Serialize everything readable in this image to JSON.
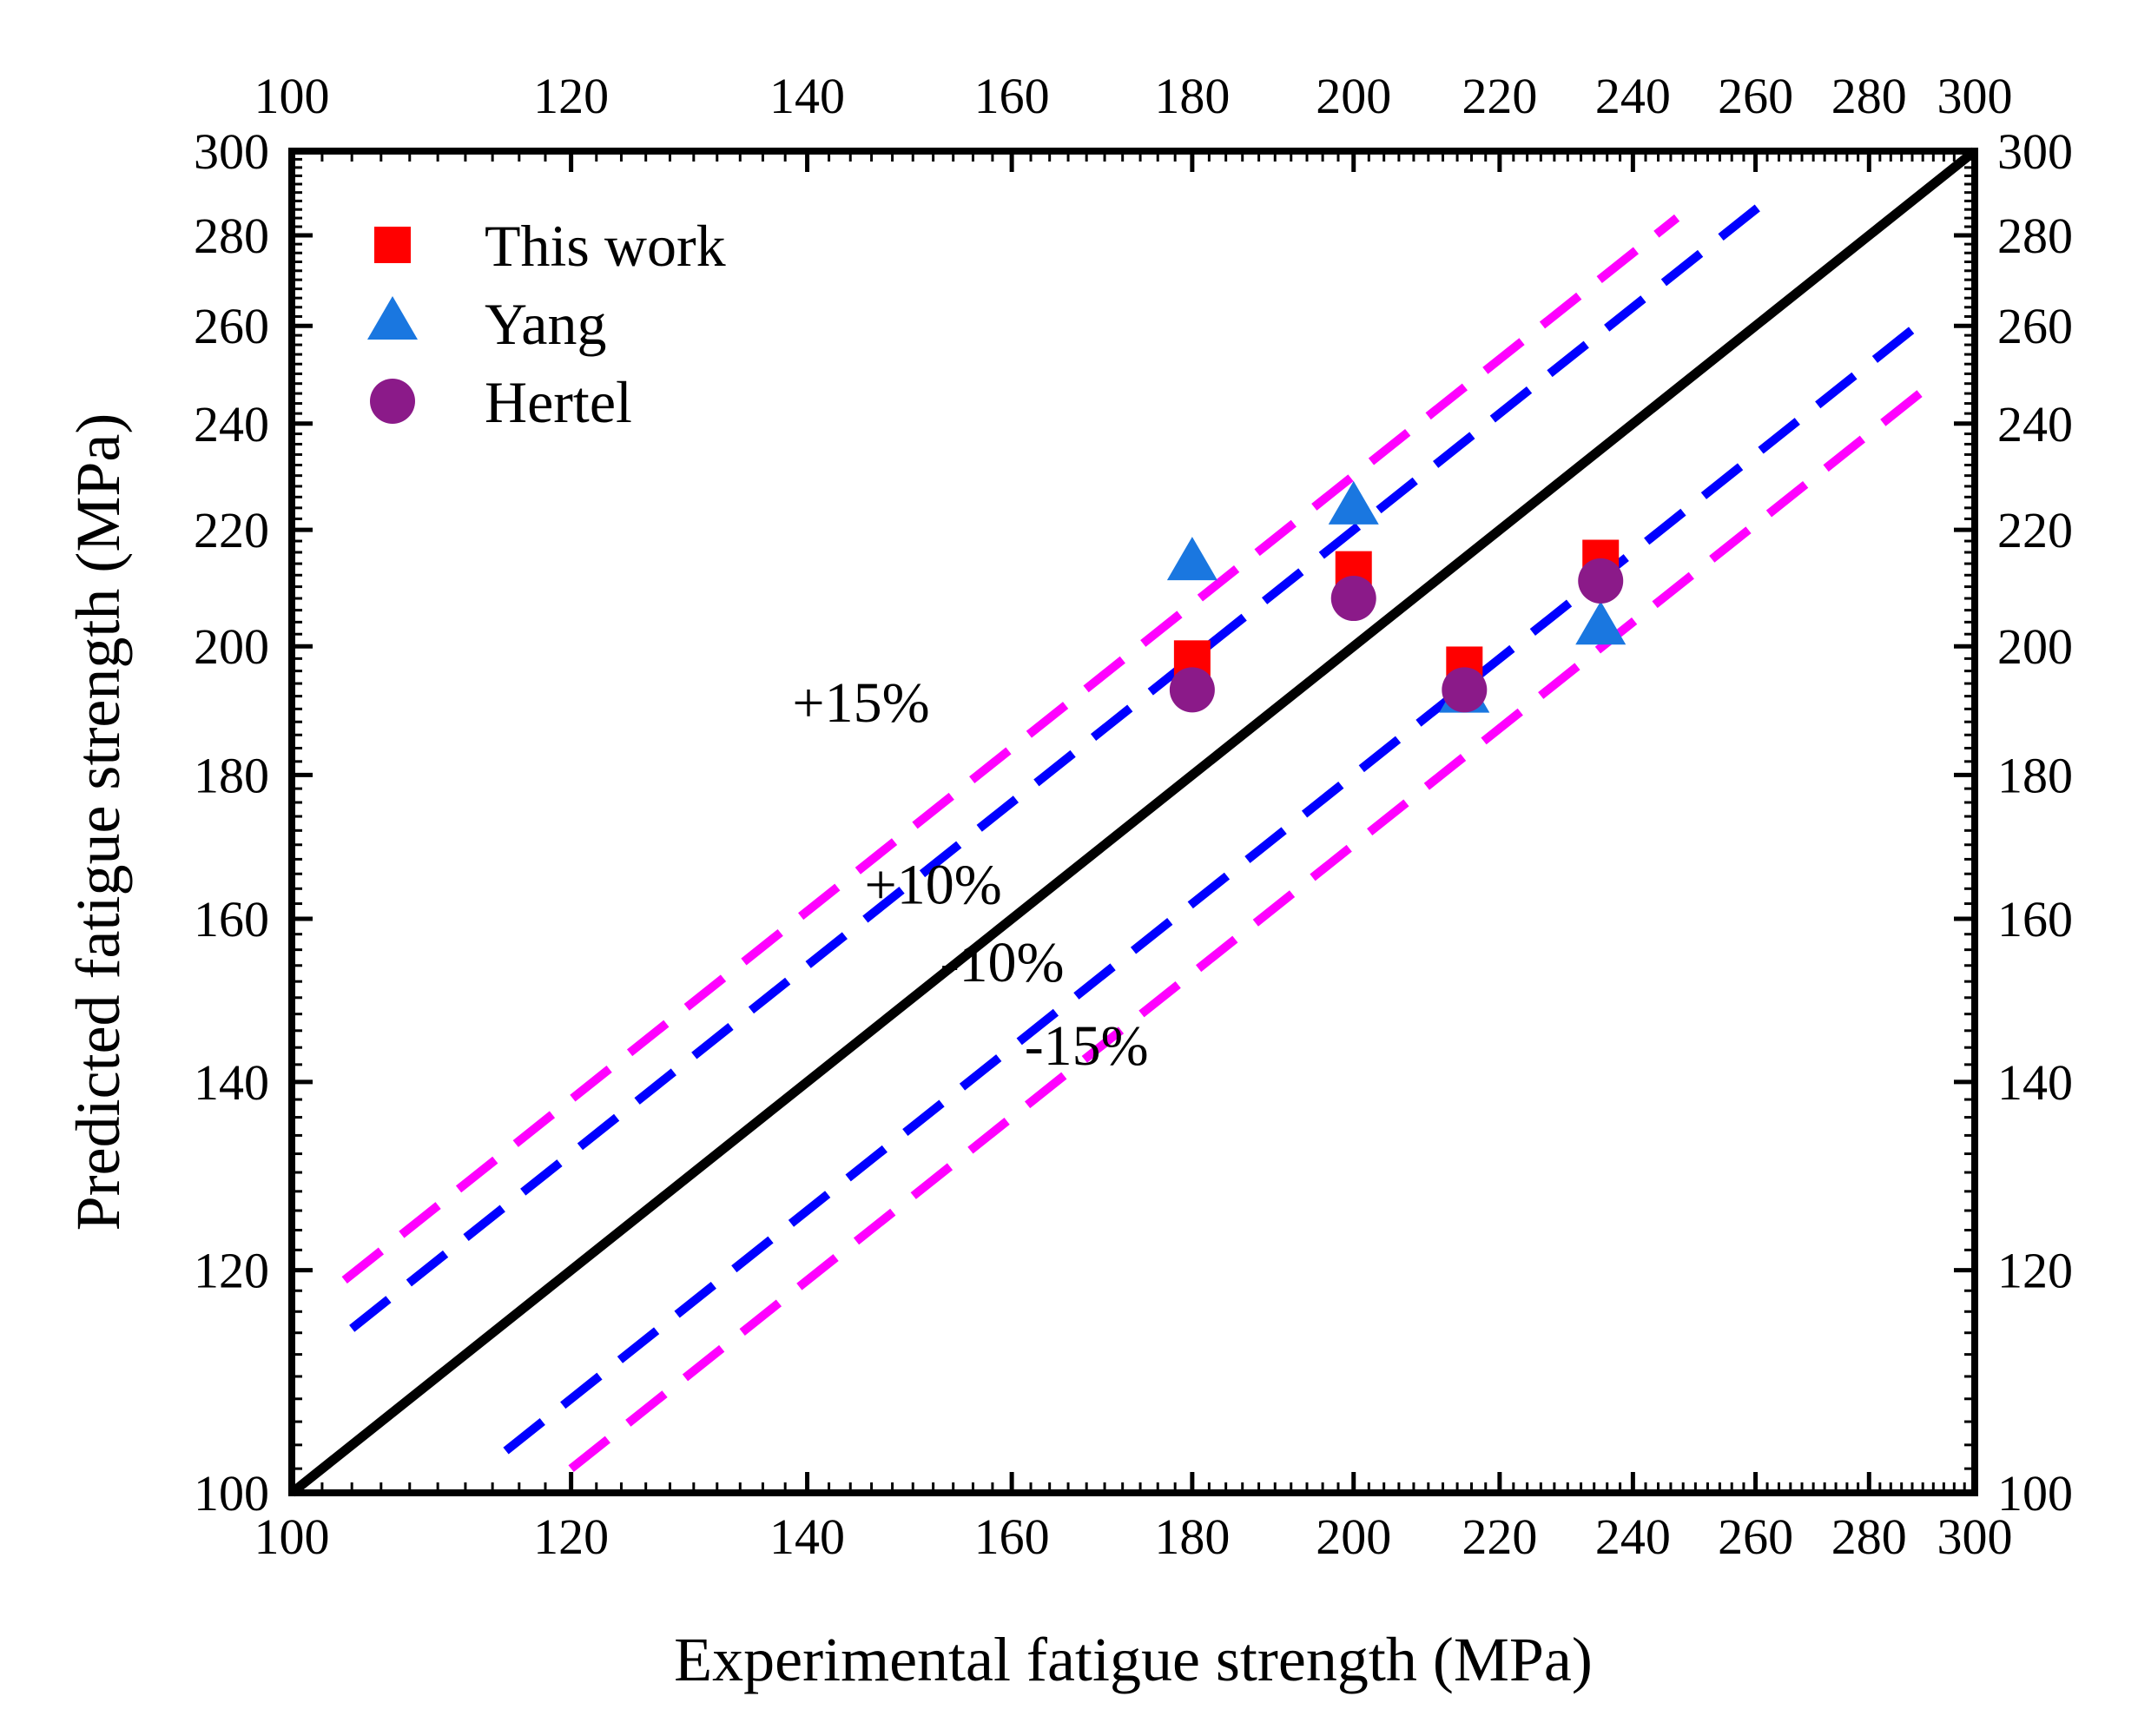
{
  "chart_data": {
    "type": "scatter",
    "xlabel": "Experimental fatigue strength (MPa)",
    "ylabel": "Predicted fatigue strength (MPa)",
    "xscale": "log",
    "yscale": "log",
    "xlim": [
      100,
      300
    ],
    "ylim": [
      100,
      300
    ],
    "xticks": [
      100,
      120,
      140,
      160,
      180,
      200,
      220,
      240,
      260,
      280,
      300
    ],
    "yticks": [
      100,
      120,
      140,
      160,
      180,
      200,
      220,
      240,
      260,
      280,
      300
    ],
    "mirror_axes": true,
    "grid": false,
    "legend_position": "top-left",
    "series": [
      {
        "name": "This work",
        "marker": "square",
        "color": "#ff0000",
        "x": [
          180,
          200,
          215,
          235
        ],
        "y": [
          198,
          213,
          197,
          215
        ]
      },
      {
        "name": "Yang",
        "marker": "triangle",
        "color": "#1a77e0",
        "x": [
          180,
          200,
          215,
          235
        ],
        "y": [
          214,
          224,
          192,
          203
        ]
      },
      {
        "name": "Hertel",
        "marker": "circle",
        "color": "#8b1a89",
        "x": [
          180,
          200,
          215,
          235
        ],
        "y": [
          193,
          208,
          193,
          211
        ]
      }
    ],
    "reference_lines": [
      {
        "label": "",
        "factor": 1.0,
        "style": "solid",
        "color": "#000000",
        "x": [
          100,
          300
        ]
      },
      {
        "label": "+15%",
        "factor": 1.15,
        "style": "dashed",
        "color": "#ff00ff",
        "x": [
          103.5,
          247
        ]
      },
      {
        "label": "+10%",
        "factor": 1.1,
        "style": "dashed",
        "color": "#0000ff",
        "x": [
          104,
          262
        ]
      },
      {
        "label": "-10%",
        "factor": 0.9,
        "style": "dashed",
        "color": "#0000ff",
        "x": [
          115,
          291
        ]
      },
      {
        "label": "-15%",
        "factor": 0.85,
        "style": "dashed",
        "color": "#ff00ff",
        "x": [
          120,
          290
        ]
      }
    ],
    "annotations": [
      {
        "text": "+15%",
        "x": 145,
        "y": 188
      },
      {
        "text": "+10%",
        "x": 152,
        "y": 162
      },
      {
        "text": "-10%",
        "x": 159,
        "y": 152
      },
      {
        "text": "-15%",
        "x": 168,
        "y": 142
      }
    ]
  }
}
